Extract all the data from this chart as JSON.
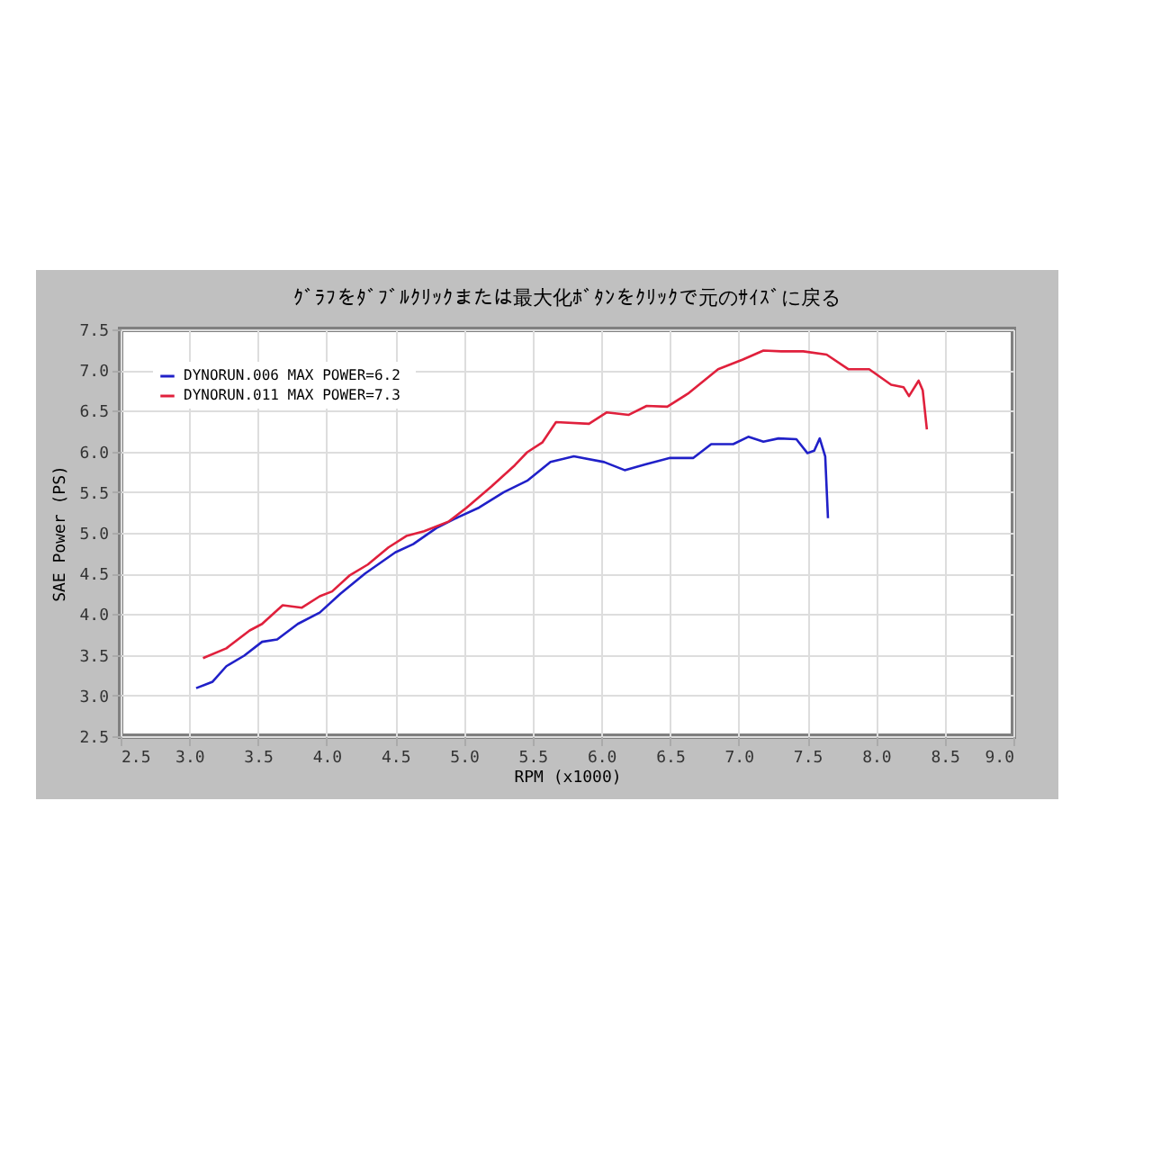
{
  "chart_data": {
    "type": "line",
    "subtitle": "ｸﾞﾗﾌをﾀﾞﾌﾞﾙｸﾘｯｸまたは最大化ﾎﾞﾀﾝをｸﾘｯｸで元のｻｲｽﾞに戻る",
    "xlabel": "RPM (x1000)",
    "ylabel": "SAE Power (PS)",
    "xlim": [
      2.5,
      9.0
    ],
    "ylim": [
      2.5,
      7.5
    ],
    "xticks": [
      {
        "value": 2.5,
        "label": "2.5"
      },
      {
        "value": 3,
        "label": "3.0"
      },
      {
        "value": 3.5,
        "label": "3.5"
      },
      {
        "value": 4,
        "label": "4.0"
      },
      {
        "value": 4.5,
        "label": "4.5"
      },
      {
        "value": 5,
        "label": "5.0"
      },
      {
        "value": 5.5,
        "label": "5.5"
      },
      {
        "value": 6,
        "label": "6.0"
      },
      {
        "value": 6.5,
        "label": "6.5"
      },
      {
        "value": 7,
        "label": "7.0"
      },
      {
        "value": 7.5,
        "label": "7.5"
      },
      {
        "value": 8,
        "label": "8.0"
      },
      {
        "value": 8.5,
        "label": "8.5"
      },
      {
        "value": 9,
        "label": "9.0"
      }
    ],
    "yticks": [
      {
        "value": 2.5,
        "label": "2.5"
      },
      {
        "value": 3,
        "label": "3.0"
      },
      {
        "value": 3.5,
        "label": "3.5"
      },
      {
        "value": 4,
        "label": "4.0"
      },
      {
        "value": 4.5,
        "label": "4.5"
      },
      {
        "value": 5,
        "label": "5.0"
      },
      {
        "value": 5.5,
        "label": "5.5"
      },
      {
        "value": 6,
        "label": "6.0"
      },
      {
        "value": 6.5,
        "label": "6.5"
      },
      {
        "value": 7,
        "label": "7.0"
      },
      {
        "value": 7.5,
        "label": "7.5"
      }
    ],
    "grid": true,
    "legend": "top left",
    "line_style": "solid",
    "marker": "none",
    "series": [
      {
        "name": "DYNORUN.006  MAX POWER=6.2",
        "color": "#2020c8",
        "x": [
          3.05,
          3.17,
          3.27,
          3.4,
          3.53,
          3.64,
          3.79,
          3.95,
          4.1,
          4.28,
          4.5,
          4.63,
          4.8,
          4.93,
          5.11,
          5.29,
          5.46,
          5.63,
          5.8,
          6.02,
          6.17,
          6.32,
          6.5,
          6.67,
          6.8,
          6.96,
          7.07,
          7.18,
          7.29,
          7.42,
          7.5,
          7.55,
          7.59,
          7.63,
          7.65
        ],
        "values": [
          3.09,
          3.17,
          3.36,
          3.49,
          3.66,
          3.69,
          3.88,
          4.02,
          4.25,
          4.5,
          4.76,
          4.86,
          5.06,
          5.17,
          5.31,
          5.5,
          5.64,
          5.87,
          5.94,
          5.87,
          5.77,
          5.84,
          5.92,
          5.92,
          6.09,
          6.09,
          6.18,
          6.12,
          6.16,
          6.15,
          5.98,
          6.01,
          6.16,
          5.94,
          5.18
        ]
      },
      {
        "name": "DYNORUN.011  MAX POWER=7.3",
        "color": "#e0203c",
        "x": [
          3.1,
          3.27,
          3.44,
          3.53,
          3.68,
          3.82,
          3.95,
          4.04,
          4.17,
          4.3,
          4.45,
          4.58,
          4.71,
          4.89,
          5.02,
          5.2,
          5.37,
          5.46,
          5.57,
          5.67,
          5.91,
          6.04,
          6.2,
          6.33,
          6.48,
          6.63,
          6.85,
          7.03,
          7.18,
          7.31,
          7.47,
          7.64,
          7.8,
          7.95,
          8.11,
          8.2,
          8.24,
          8.31,
          8.34,
          8.37
        ],
        "values": [
          3.46,
          3.58,
          3.8,
          3.88,
          4.11,
          4.08,
          4.22,
          4.28,
          4.48,
          4.61,
          4.82,
          4.96,
          5.02,
          5.14,
          5.31,
          5.57,
          5.83,
          5.99,
          6.11,
          6.36,
          6.34,
          6.48,
          6.45,
          6.56,
          6.55,
          6.71,
          7.01,
          7.13,
          7.24,
          7.23,
          7.23,
          7.19,
          7.01,
          7.01,
          6.82,
          6.79,
          6.68,
          6.87,
          6.75,
          6.27
        ]
      }
    ]
  }
}
